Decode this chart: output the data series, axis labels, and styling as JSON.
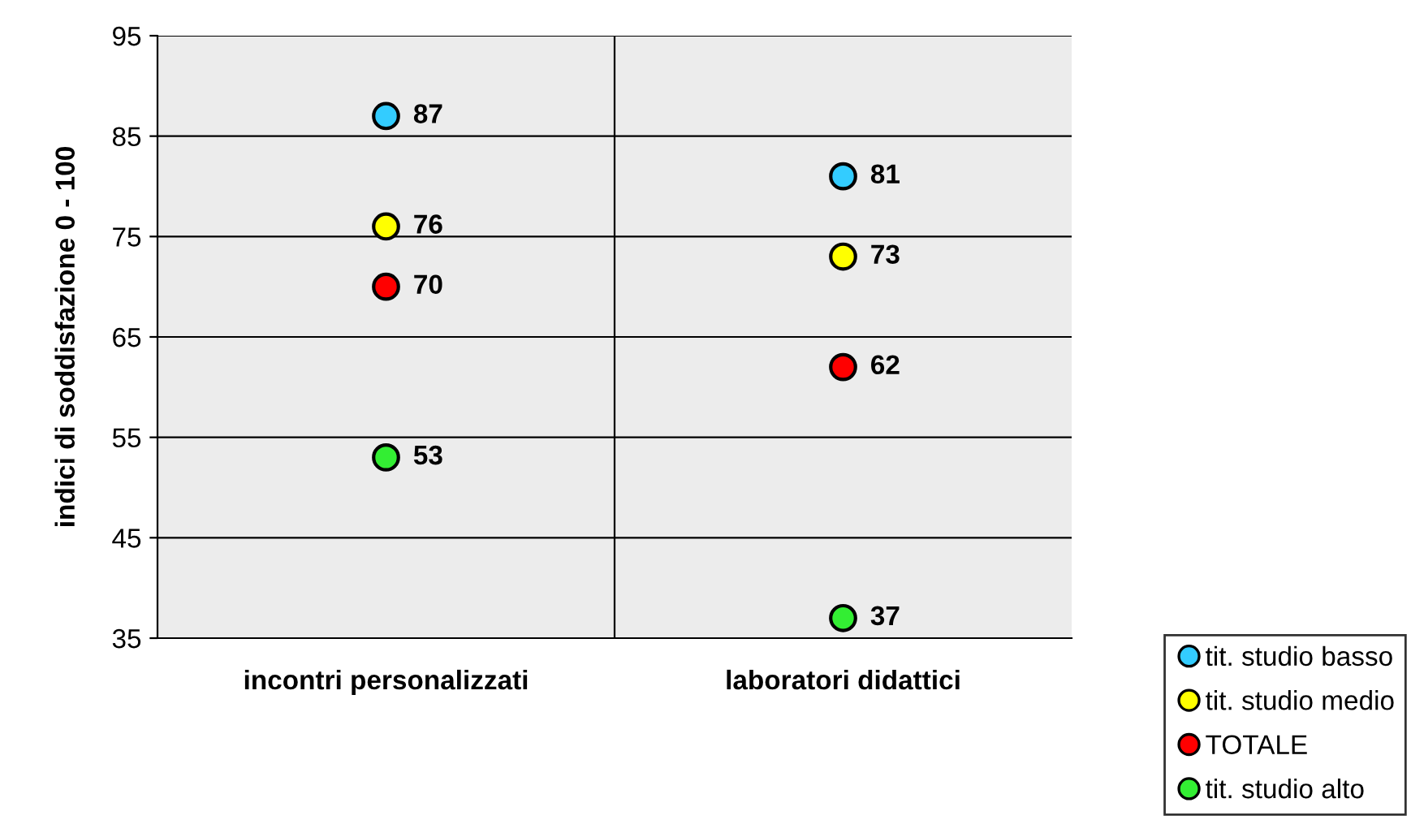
{
  "chart_data": {
    "type": "scatter",
    "ylabel": "indici di soddisfazione 0 - 100",
    "categories": [
      "incontri personalizzati",
      "laboratori didattici"
    ],
    "series": [
      {
        "name": "tit. studio basso",
        "color": "#33ccff",
        "values": [
          87,
          81
        ]
      },
      {
        "name": "tit. studio medio",
        "color": "#ffff00",
        "values": [
          76,
          73
        ]
      },
      {
        "name": "TOTALE",
        "color": "#ff0000",
        "values": [
          70,
          62
        ]
      },
      {
        "name": "tit. studio alto",
        "color": "#33ee33",
        "values": [
          53,
          37
        ]
      }
    ],
    "ylim": [
      35,
      95
    ],
    "yticks": [
      35,
      45,
      55,
      65,
      75,
      85,
      95
    ],
    "grid": true,
    "legend": "bottom right",
    "marker": "circle",
    "data_labels": true
  }
}
